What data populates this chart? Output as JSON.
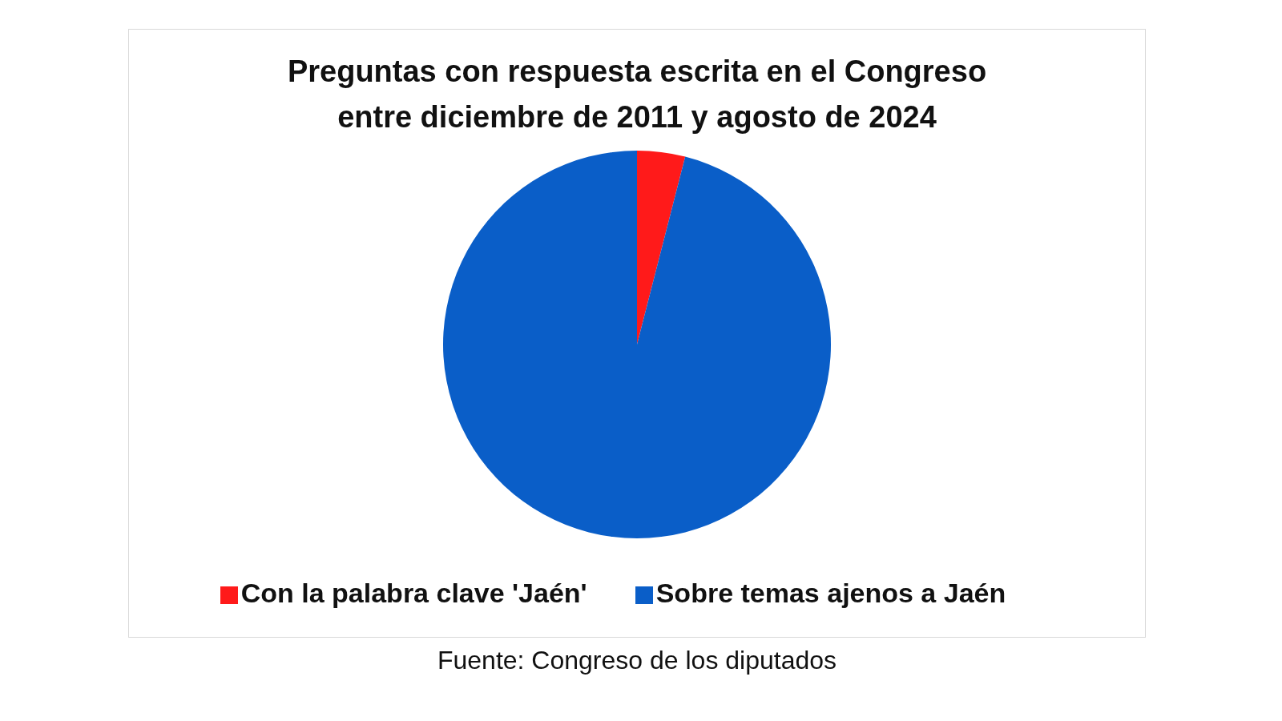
{
  "chart_data": {
    "type": "pie",
    "title": "Preguntas con respuesta escrita en el Congreso\nentre diciembre de 2011 y agosto de 2024",
    "categories": [
      "Con la palabra clave 'Jaén'",
      "Sobre temas ajenos a Jaén"
    ],
    "values": [
      4,
      96
    ],
    "colors": [
      "#ff1a1a",
      "#0a5ec8"
    ],
    "legend": "bottom",
    "annotations": [
      "Fuente: Congreso de los diputados"
    ]
  }
}
